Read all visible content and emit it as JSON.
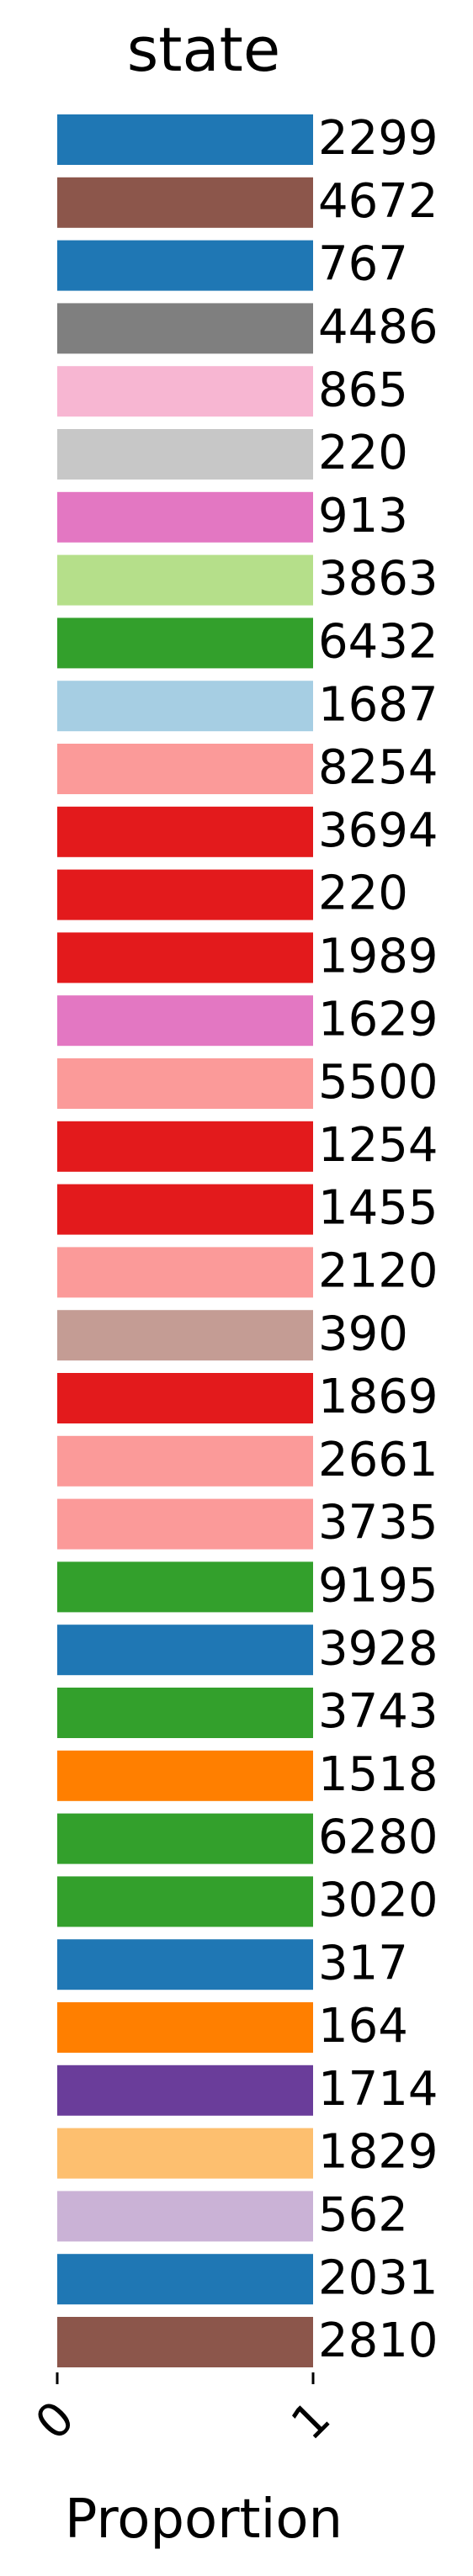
{
  "chart_data": {
    "type": "bar",
    "orientation": "horizontal",
    "stacked": true,
    "title": "state",
    "xlabel": "Proportion",
    "ylabel": "",
    "xlim": [
      0,
      1
    ],
    "xticks": [
      "0",
      "1"
    ],
    "grid": false,
    "legend": "none",
    "values": [
      2299,
      4672,
      767,
      4486,
      865,
      220,
      913,
      3863,
      6432,
      1687,
      8254,
      3694,
      220,
      1989,
      1629,
      5500,
      1254,
      1455,
      2120,
      390,
      1869,
      2661,
      3735,
      9195,
      3928,
      3743,
      1518,
      6280,
      3020,
      317,
      164,
      1714,
      1829,
      562,
      2031,
      2810
    ],
    "proportions": [
      1,
      1,
      1,
      1,
      1,
      1,
      1,
      1,
      1,
      1,
      1,
      1,
      1,
      1,
      1,
      1,
      1,
      1,
      1,
      1,
      1,
      1,
      1,
      1,
      1,
      1,
      1,
      1,
      1,
      1,
      1,
      1,
      1,
      1,
      1,
      1
    ],
    "colors": [
      "#1f77b4",
      "#8c564b",
      "#1f77b4",
      "#7f7f7f",
      "#f7b6d2",
      "#c7c7c7",
      "#e377c2",
      "#b5df8a",
      "#33a02c",
      "#a6cee3",
      "#fb9a99",
      "#e31a1c",
      "#e31a1c",
      "#e31a1c",
      "#e377c2",
      "#fb9a99",
      "#e31a1c",
      "#e31a1c",
      "#fb9a99",
      "#c49c94",
      "#e31a1c",
      "#fb9a99",
      "#fb9a99",
      "#33a02c",
      "#1f77b4",
      "#33a02c",
      "#ff7f00",
      "#33a02c",
      "#33a02c",
      "#1f77b4",
      "#ff7f00",
      "#6a3d9a",
      "#fdbf6f",
      "#cab2d6",
      "#1f77b4",
      "#8c564b"
    ]
  }
}
